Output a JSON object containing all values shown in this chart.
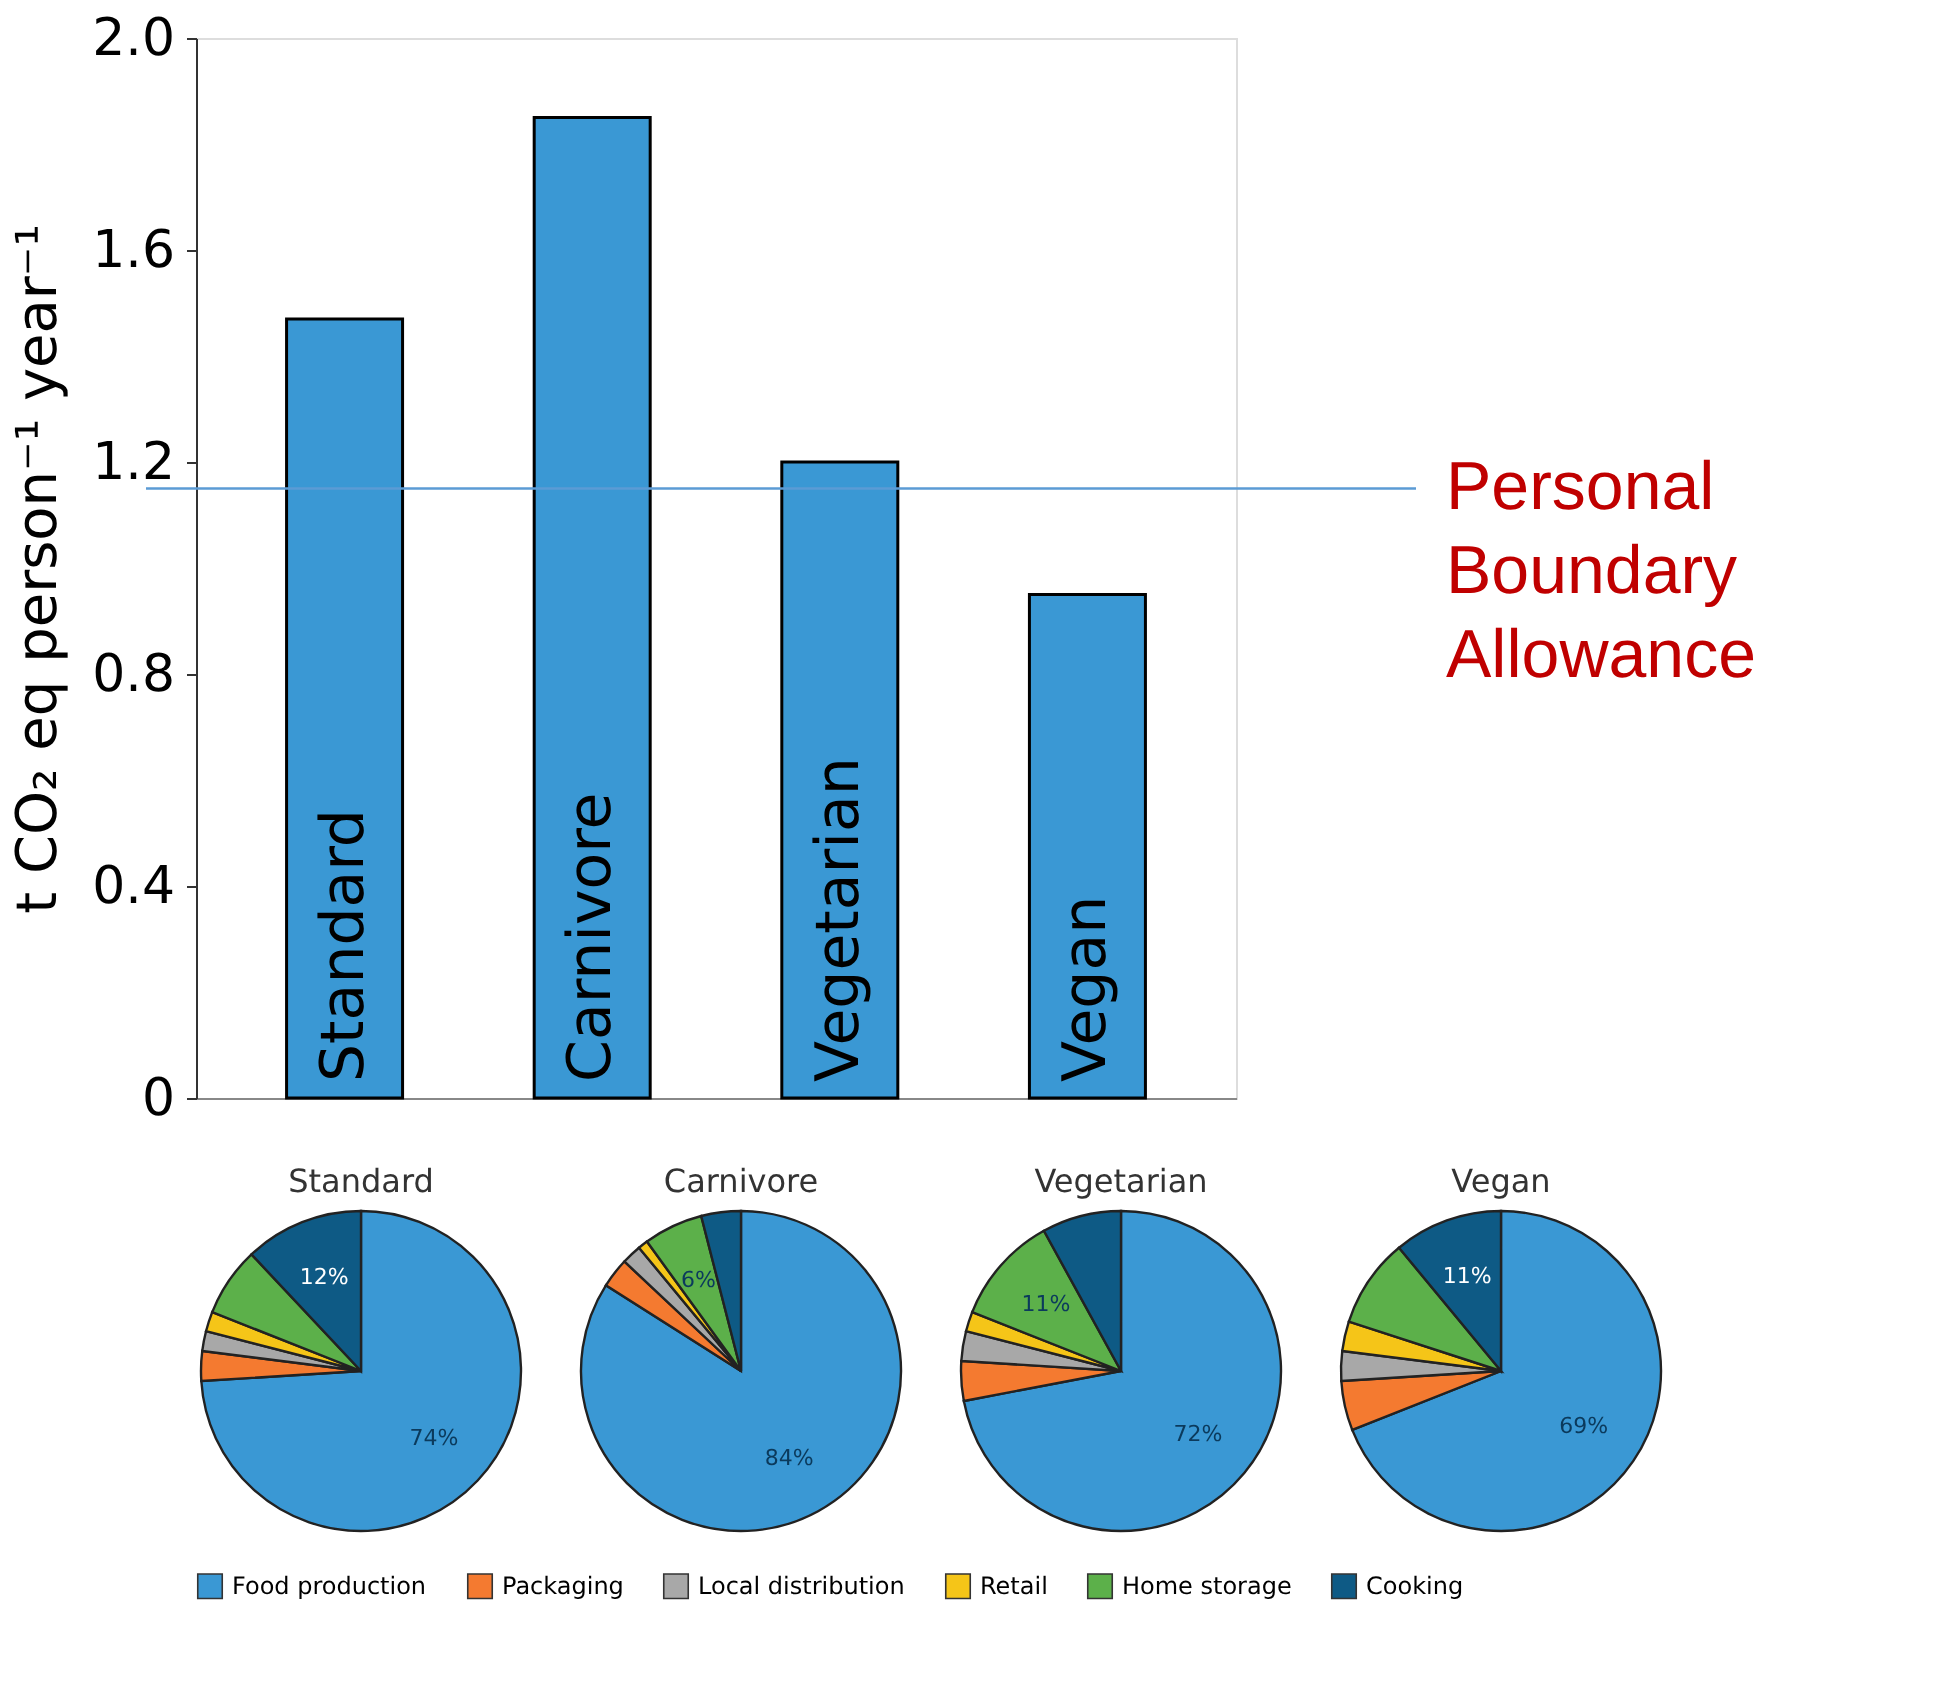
{
  "chart_data": [
    {
      "type": "bar",
      "ylabel": "t CO₂ eq person⁻¹ year⁻¹",
      "categories": [
        "Standard",
        "Carnivore",
        "Vegetarian",
        "Vegan"
      ],
      "values": [
        1.47,
        1.85,
        1.2,
        0.95
      ],
      "color": "#3a98d4",
      "ylim": [
        0,
        2
      ],
      "yticks": [
        0,
        0.4,
        0.8,
        1.2,
        1.6,
        {
          "value": 2,
          "label": "2.0"
        }
      ],
      "tick_labels": "y",
      "ref_lines": [
        {
          "axis": "y",
          "value": 1.15,
          "label": "Personal Boundary Allowance",
          "color": "#5b9bd5"
        }
      ]
    },
    {
      "type": "pie",
      "categories": [
        "Food production",
        "Packaging",
        "Local distribution",
        "Retail",
        "Home storage",
        "Cooking"
      ],
      "colors": [
        "#3a98d4",
        "#f47a30",
        "#a8a8a8",
        "#f5c518",
        "#5cb04a",
        "#0e5a85"
      ],
      "legend": "bottom",
      "series": [
        {
          "name": "Standard",
          "values": [
            74,
            3,
            2,
            2,
            7,
            12
          ],
          "value_labels": [
            "74%",
            null,
            null,
            null,
            null,
            "12%"
          ]
        },
        {
          "name": "Carnivore",
          "values": [
            84,
            3,
            2,
            1,
            6,
            4
          ],
          "value_labels": [
            "84%",
            null,
            null,
            null,
            "6%",
            null
          ]
        },
        {
          "name": "Vegetarian",
          "values": [
            72,
            4,
            3,
            2,
            11,
            8
          ],
          "value_labels": [
            "72%",
            null,
            null,
            null,
            "11%",
            null
          ]
        },
        {
          "name": "Vegan",
          "values": [
            69,
            5,
            3,
            3,
            9,
            11
          ],
          "value_labels": [
            "69%",
            null,
            null,
            null,
            null,
            "11%"
          ]
        }
      ]
    }
  ]
}
